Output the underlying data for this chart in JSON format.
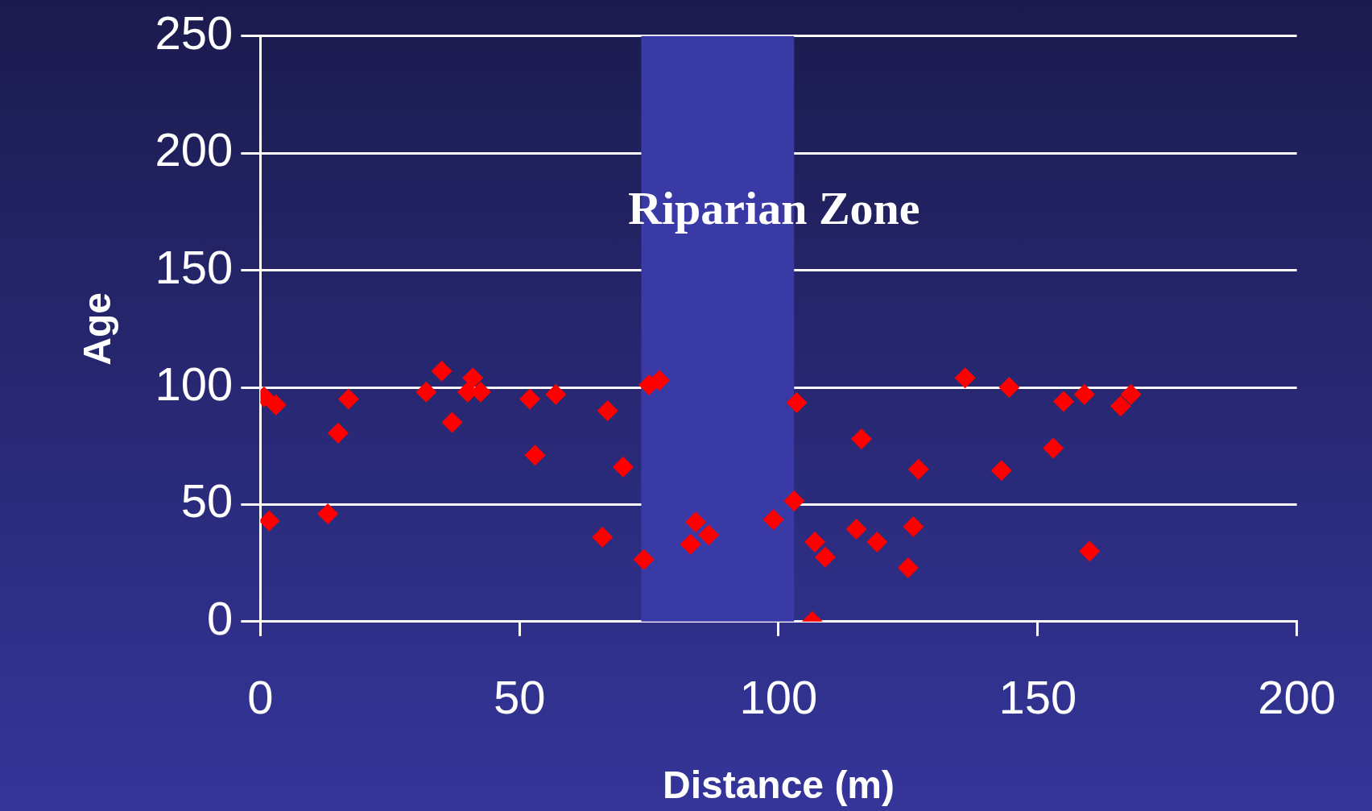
{
  "chart_data": {
    "type": "scatter",
    "xlabel": "Distance (m)",
    "ylabel": "Age",
    "x": [
      0.7,
      3,
      1.7,
      13,
      15,
      17,
      32,
      35,
      37,
      40,
      41,
      42.5,
      52,
      53,
      57,
      67,
      66,
      70,
      74,
      75,
      77,
      84,
      83,
      86.5,
      99,
      103.5,
      103,
      106.5,
      107,
      109,
      115,
      116,
      119,
      125,
      126,
      127,
      136,
      143,
      144.5,
      153,
      155,
      159,
      160,
      166,
      168
    ],
    "values": [
      96,
      92.5,
      43,
      46,
      80.5,
      95,
      98,
      107,
      85,
      98,
      104,
      98,
      95,
      71,
      97,
      90,
      36,
      66,
      26.5,
      101,
      103,
      42.5,
      33,
      37,
      43.5,
      93.5,
      51.5,
      0,
      34,
      27.5,
      39.5,
      78,
      34,
      23,
      40.5,
      65,
      104,
      64.5,
      100,
      74,
      94,
      97,
      30,
      92,
      97
    ],
    "color": "#ff0000",
    "marker": "diamond",
    "xlim": [
      0,
      200
    ],
    "xticks": [
      0,
      50,
      100,
      150,
      200
    ],
    "ylim": [
      0,
      250
    ],
    "yticks": [
      0,
      50,
      100,
      150,
      200,
      250
    ],
    "grid": "y",
    "bands": [
      {
        "axis": "x",
        "from": 73.5,
        "to": 103,
        "label": "Riparian Zone",
        "color": "#3a3aa6"
      }
    ]
  }
}
